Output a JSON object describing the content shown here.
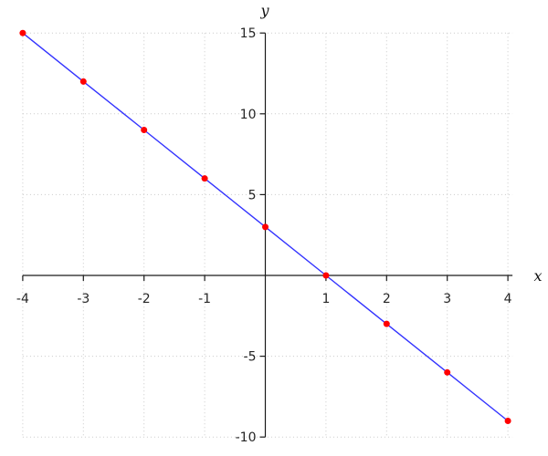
{
  "chart_data": {
    "type": "line",
    "title": "",
    "xlabel": "x",
    "ylabel": "y",
    "x": [
      -4,
      -3,
      -2,
      -1,
      0,
      1,
      2,
      3,
      4
    ],
    "y": [
      15,
      12,
      9,
      6,
      3,
      0,
      -3,
      -6,
      -9
    ],
    "xlim": [
      -4,
      4
    ],
    "ylim": [
      -10,
      15
    ],
    "x_tick_labels": [
      -4,
      -3,
      -2,
      -1,
      1,
      2,
      3,
      4
    ],
    "y_tick_labels": [
      -10,
      -5,
      5,
      10,
      15
    ],
    "grid": "dotted",
    "legend": "none",
    "marker": "filled-circle",
    "colors": {
      "line": "#3333ff",
      "marker": "#ff0000",
      "grid": "#c9c9c9",
      "axis": "#1a1a1a",
      "tick_text": "#262626"
    }
  }
}
